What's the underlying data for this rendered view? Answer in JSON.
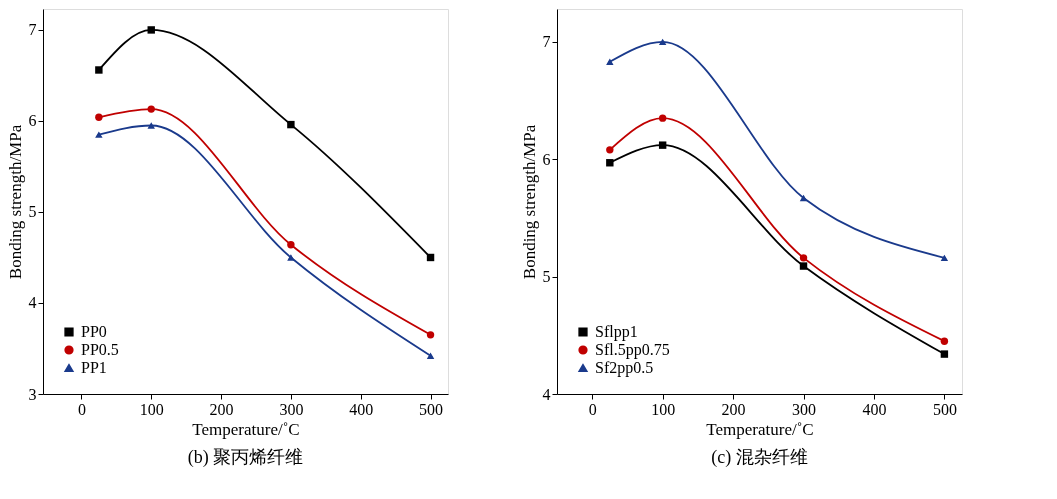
{
  "chart_data": [
    {
      "type": "line",
      "title": "(b) 聚丙烯纤维",
      "xlabel": "Temperature/˚C",
      "ylabel": "Bonding strength/MPa",
      "x": [
        25,
        100,
        300,
        500
      ],
      "xlim": [
        -55,
        525
      ],
      "xticks": [
        0,
        100,
        200,
        300,
        400,
        500
      ],
      "ylim": [
        3,
        7.23
      ],
      "yticks": [
        3,
        4,
        5,
        6,
        7
      ],
      "grid": false,
      "legend": "bottom left",
      "series": [
        {
          "name": "PP0",
          "color": "#000000",
          "marker": "square",
          "values": [
            6.56,
            7.0,
            5.96,
            4.5
          ]
        },
        {
          "name": "PP0.5",
          "color": "#c00000",
          "marker": "circle",
          "values": [
            6.04,
            6.13,
            4.64,
            3.65
          ]
        },
        {
          "name": "PP1",
          "color": "#1a3a8c",
          "marker": "triangle",
          "values": [
            5.85,
            5.95,
            4.5,
            3.42
          ]
        }
      ]
    },
    {
      "type": "line",
      "title": "(c) 混杂纤维",
      "xlabel": "Temperature/˚C",
      "ylabel": "Bonding strength/MPa",
      "x": [
        25,
        100,
        300,
        500
      ],
      "xlim": [
        -50,
        525
      ],
      "xticks": [
        0,
        100,
        200,
        300,
        400,
        500
      ],
      "ylim": [
        4,
        7.28
      ],
      "yticks": [
        4,
        5,
        6,
        7
      ],
      "grid": false,
      "legend": "bottom left",
      "series": [
        {
          "name": "Sflpp1",
          "color": "#000000",
          "marker": "square",
          "values": [
            5.97,
            6.12,
            5.09,
            4.34
          ]
        },
        {
          "name": "Sfl.5pp0.75",
          "color": "#c00000",
          "marker": "circle",
          "values": [
            6.08,
            6.35,
            5.16,
            4.45
          ]
        },
        {
          "name": "Sf2pp0.5",
          "color": "#1a3a8c",
          "marker": "triangle",
          "values": [
            6.83,
            7.0,
            5.67,
            5.16
          ]
        }
      ]
    }
  ]
}
